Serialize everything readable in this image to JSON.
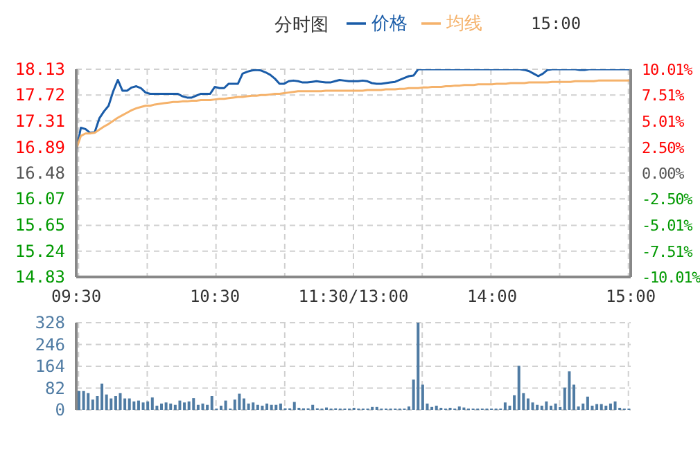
{
  "chart_data": [
    {
      "type": "line",
      "title": "分时图",
      "annotations": [
        "15:00"
      ],
      "categories": [
        "09:30",
        null,
        null,
        null,
        null,
        null,
        null,
        null,
        null,
        null,
        null,
        null,
        null,
        null,
        null,
        null,
        null,
        null,
        null,
        null,
        null,
        null,
        null,
        null,
        null,
        null,
        null,
        null,
        null,
        null,
        "10:30",
        null,
        null,
        null,
        null,
        null,
        null,
        null,
        null,
        null,
        null,
        null,
        null,
        null,
        null,
        null,
        null,
        null,
        null,
        null,
        null,
        null,
        null,
        null,
        null,
        null,
        null,
        null,
        null,
        null,
        "11:30/13:00",
        null,
        null,
        null,
        null,
        null,
        null,
        null,
        null,
        null,
        null,
        null,
        null,
        null,
        null,
        null,
        null,
        null,
        null,
        null,
        null,
        null,
        null,
        null,
        null,
        null,
        null,
        null,
        null,
        null,
        "14:00",
        null,
        null,
        null,
        null,
        null,
        null,
        null,
        null,
        null,
        null,
        null,
        null,
        null,
        null,
        null,
        null,
        null,
        null,
        null,
        null,
        null,
        null,
        null,
        null,
        null,
        null,
        null,
        null,
        null,
        "15:00"
      ],
      "ylim": [
        14.83,
        18.13
      ],
      "yticks": [
        14.83,
        15.24,
        15.65,
        16.07,
        16.48,
        16.89,
        17.31,
        17.72,
        18.13
      ],
      "y2lim": [
        -10.01,
        10.01
      ],
      "y2ticks": [
        {
          "value": -10.01,
          "label": "-10.01%"
        },
        {
          "value": -7.51,
          "label": "-7.51%"
        },
        {
          "value": -5.01,
          "label": "-5.01%"
        },
        {
          "value": -2.5,
          "label": "-2.50%"
        },
        {
          "value": 0,
          "label": "0.00%"
        },
        {
          "value": 2.5,
          "label": "2.50%"
        },
        {
          "value": 5.01,
          "label": "5.01%"
        },
        {
          "value": 7.51,
          "label": "7.51%"
        },
        {
          "value": 10.01,
          "label": "10.01%"
        }
      ],
      "grid": true,
      "legend": "top",
      "series": [
        {
          "name": "价格",
          "color": "#1a5ca8",
          "values": [
            16.83,
            17.2,
            17.18,
            17.12,
            17.13,
            17.35,
            17.46,
            17.55,
            17.78,
            17.96,
            17.79,
            17.79,
            17.84,
            17.86,
            17.83,
            17.76,
            17.74,
            17.74,
            17.74,
            17.74,
            17.74,
            17.74,
            17.74,
            17.7,
            17.68,
            17.68,
            17.71,
            17.74,
            17.74,
            17.74,
            17.85,
            17.83,
            17.83,
            17.9,
            17.9,
            17.9,
            18.06,
            18.09,
            18.11,
            18.12,
            18.11,
            18.08,
            18.04,
            17.98,
            17.9,
            17.9,
            17.94,
            17.95,
            17.94,
            17.92,
            17.92,
            17.93,
            17.94,
            17.93,
            17.92,
            17.92,
            17.94,
            17.96,
            17.95,
            17.94,
            17.94,
            17.94,
            17.95,
            17.94,
            17.91,
            17.9,
            17.9,
            17.91,
            17.92,
            17.93,
            17.96,
            17.99,
            18.02,
            18.03,
            18.13,
            18.13,
            18.13,
            18.13,
            18.13,
            18.13,
            18.13,
            18.13,
            18.13,
            18.13,
            18.13,
            18.13,
            18.13,
            18.13,
            18.13,
            18.13,
            18.13,
            18.13,
            18.13,
            18.13,
            18.13,
            18.13,
            18.13,
            18.12,
            18.1,
            18.06,
            18.02,
            18.06,
            18.12,
            18.13,
            18.13,
            18.13,
            18.13,
            18.13,
            18.13,
            18.12,
            18.12,
            18.13,
            18.13,
            18.13,
            18.13,
            18.13,
            18.13,
            18.13,
            18.13,
            18.13,
            18.13
          ]
        },
        {
          "name": "均线",
          "color": "#f5b26b",
          "values": [
            16.86,
            17.07,
            17.11,
            17.11,
            17.12,
            17.17,
            17.22,
            17.26,
            17.31,
            17.36,
            17.4,
            17.44,
            17.48,
            17.51,
            17.53,
            17.55,
            17.55,
            17.57,
            17.58,
            17.59,
            17.6,
            17.61,
            17.61,
            17.62,
            17.62,
            17.63,
            17.63,
            17.64,
            17.64,
            17.64,
            17.65,
            17.66,
            17.66,
            17.67,
            17.68,
            17.69,
            17.69,
            17.7,
            17.71,
            17.71,
            17.72,
            17.72,
            17.73,
            17.74,
            17.74,
            17.75,
            17.76,
            17.77,
            17.78,
            17.78,
            17.78,
            17.78,
            17.78,
            17.78,
            17.79,
            17.79,
            17.79,
            17.79,
            17.79,
            17.79,
            17.79,
            17.79,
            17.79,
            17.8,
            17.8,
            17.8,
            17.8,
            17.81,
            17.81,
            17.81,
            17.82,
            17.82,
            17.83,
            17.83,
            17.83,
            17.84,
            17.84,
            17.85,
            17.85,
            17.85,
            17.86,
            17.86,
            17.87,
            17.87,
            17.88,
            17.88,
            17.88,
            17.89,
            17.89,
            17.89,
            17.89,
            17.9,
            17.9,
            17.9,
            17.91,
            17.91,
            17.91,
            17.91,
            17.92,
            17.92,
            17.92,
            17.92,
            17.92,
            17.93,
            17.93,
            17.93,
            17.93,
            17.93,
            17.94,
            17.94,
            17.94,
            17.94,
            17.94,
            17.95,
            17.95,
            17.95,
            17.95,
            17.95,
            17.95,
            17.95,
            17.95
          ]
        }
      ]
    },
    {
      "type": "bar",
      "color": "#4f7ba3",
      "tick_labels": "y",
      "ylim": [
        0,
        328
      ],
      "yticks": [
        0,
        82,
        164,
        246,
        328
      ],
      "grid": true,
      "categories": [
        null,
        null,
        null,
        null,
        null,
        null,
        null,
        null,
        null,
        null,
        null,
        null,
        null,
        null,
        null,
        null,
        null,
        null,
        null,
        null,
        null,
        null,
        null,
        null,
        null,
        null,
        null,
        null,
        null,
        null,
        null,
        null,
        null,
        null,
        null,
        null,
        null,
        null,
        null,
        null,
        null,
        null,
        null,
        null,
        null,
        null,
        null,
        null,
        null,
        null,
        null,
        null,
        null,
        null,
        null,
        null,
        null,
        null,
        null,
        null,
        null,
        null,
        null,
        null,
        null,
        null,
        null,
        null,
        null,
        null,
        null,
        null,
        null,
        null,
        null,
        null,
        null,
        null,
        null,
        null,
        null,
        null,
        null,
        null,
        null,
        null,
        null,
        null,
        null,
        null,
        null,
        null,
        null,
        null,
        null,
        null,
        null,
        null,
        null,
        null,
        null,
        null,
        null,
        null,
        null,
        null,
        null,
        null,
        null,
        null,
        null,
        null,
        null,
        null,
        null,
        null,
        null,
        null,
        null,
        null,
        null
      ],
      "values": [
        71,
        71,
        63,
        39,
        52,
        99,
        58,
        43,
        52,
        63,
        43,
        43,
        32,
        35,
        28,
        32,
        47,
        16,
        24,
        28,
        24,
        19,
        35,
        28,
        32,
        44,
        19,
        24,
        19,
        52,
        5,
        16,
        35,
        5,
        39,
        61,
        43,
        24,
        28,
        19,
        16,
        24,
        19,
        19,
        24,
        6,
        6,
        30,
        8,
        6,
        6,
        19,
        6,
        5,
        9,
        5,
        6,
        5,
        5,
        5,
        8,
        5,
        5,
        5,
        11,
        11,
        5,
        5,
        5,
        5,
        5,
        5,
        13,
        114,
        328,
        95,
        24,
        11,
        16,
        8,
        5,
        8,
        5,
        13,
        9,
        5,
        5,
        5,
        5,
        5,
        5,
        5,
        5,
        28,
        16,
        55,
        166,
        63,
        43,
        28,
        19,
        16,
        32,
        16,
        24,
        11,
        84,
        145,
        95,
        13,
        24,
        50,
        16,
        22,
        22,
        16,
        24,
        32,
        8,
        5,
        5
      ]
    }
  ]
}
